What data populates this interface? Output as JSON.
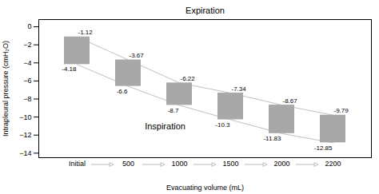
{
  "chart_data": {
    "type": "floating_bar",
    "xlabel": "Evacuating volume (mL)",
    "ylabel": "Intrapleural pressure (cmH₂O)",
    "categories": [
      "Initial",
      "500",
      "1000",
      "1500",
      "2000",
      "2200"
    ],
    "color": "#a8a8a8",
    "series": [
      {
        "name": "Expiration",
        "color": "#c0c0c0",
        "values": [
          -1.12,
          -3.67,
          -6.22,
          -7.34,
          -8.67,
          -9.79
        ]
      },
      {
        "name": "Inspiration",
        "color": "#c0c0c0",
        "values": [
          -4.18,
          -6.6,
          -8.7,
          -10.3,
          -11.83,
          -12.85
        ]
      }
    ],
    "ylim": [
      -14.5,
      0.8
    ],
    "yticks": [
      0,
      -2,
      -4,
      -6,
      -8,
      -10,
      -12,
      -14
    ],
    "data_labels": true,
    "grid": false
  }
}
